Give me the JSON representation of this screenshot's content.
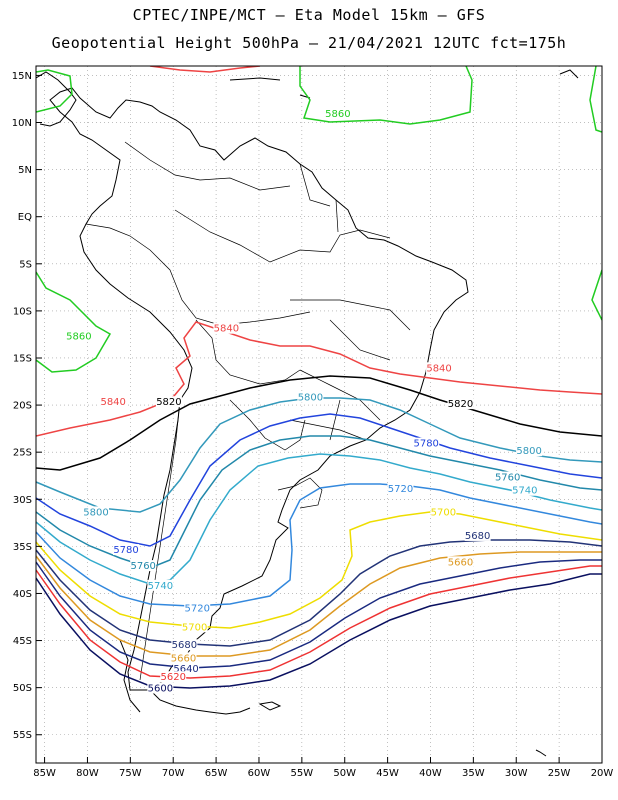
{
  "header": {
    "line1": "CPTEC/INPE/MCT –  Eta Model 15km – GFS",
    "line2": "Geopotential Height 500hPa – 21/04/2021 12UTC fct=175h"
  },
  "map": {
    "lon_range": [
      -86,
      -20
    ],
    "lat_range": [
      -58,
      16
    ],
    "lat_ticks": [
      {
        "value": 15,
        "label": "15N"
      },
      {
        "value": 10,
        "label": "10N"
      },
      {
        "value": 5,
        "label": "5N"
      },
      {
        "value": 0,
        "label": "EQ"
      },
      {
        "value": -5,
        "label": "5S"
      },
      {
        "value": -10,
        "label": "10S"
      },
      {
        "value": -15,
        "label": "15S"
      },
      {
        "value": -20,
        "label": "20S"
      },
      {
        "value": -25,
        "label": "25S"
      },
      {
        "value": -30,
        "label": "30S"
      },
      {
        "value": -35,
        "label": "35S"
      },
      {
        "value": -40,
        "label": "40S"
      },
      {
        "value": -45,
        "label": "45S"
      },
      {
        "value": -50,
        "label": "50S"
      },
      {
        "value": -55,
        "label": "55S"
      }
    ],
    "lon_ticks": [
      {
        "value": -85,
        "label": "85W"
      },
      {
        "value": -80,
        "label": "80W"
      },
      {
        "value": -75,
        "label": "75W"
      },
      {
        "value": -70,
        "label": "70W"
      },
      {
        "value": -65,
        "label": "65W"
      },
      {
        "value": -60,
        "label": "60W"
      },
      {
        "value": -55,
        "label": "55W"
      },
      {
        "value": -50,
        "label": "50W"
      },
      {
        "value": -45,
        "label": "45W"
      },
      {
        "value": -40,
        "label": "40W"
      },
      {
        "value": -35,
        "label": "35W"
      },
      {
        "value": -30,
        "label": "30W"
      },
      {
        "value": -25,
        "label": "25W"
      },
      {
        "value": -20,
        "label": "20W"
      }
    ],
    "grid": true,
    "colors": {
      "5860": "#22cc22",
      "5840": "#ee4444",
      "5820": "#000000",
      "5800": "#3399bb",
      "5780": "#2244dd",
      "5760": "#2288aa",
      "5740": "#33aacc",
      "5720": "#3388dd",
      "5700": "#eedd00",
      "5680": "#223377",
      "5660": "#dd9922",
      "5640": "#1a2a80",
      "5620": "#ee3333",
      "5600": "#0a1060"
    },
    "contour_labels": [
      {
        "text": "5860",
        "lon": -50.8,
        "lat": 10.8
      },
      {
        "text": "5860",
        "lon": -81.0,
        "lat": -12.8
      },
      {
        "text": "5840",
        "lon": -63.8,
        "lat": -12.0
      },
      {
        "text": "5840",
        "lon": -39.0,
        "lat": -16.2
      },
      {
        "text": "5840",
        "lon": -77.0,
        "lat": -19.8
      },
      {
        "text": "5820",
        "lon": -70.5,
        "lat": -19.8
      },
      {
        "text": "5820",
        "lon": -36.5,
        "lat": -20.0
      },
      {
        "text": "5800",
        "lon": -54.0,
        "lat": -19.3
      },
      {
        "text": "5800",
        "lon": -28.5,
        "lat": -25.0
      },
      {
        "text": "5800",
        "lon": -79.0,
        "lat": -31.5
      },
      {
        "text": "5780",
        "lon": -40.5,
        "lat": -24.2
      },
      {
        "text": "5780",
        "lon": -75.5,
        "lat": -35.5
      },
      {
        "text": "5760",
        "lon": -31.0,
        "lat": -27.8
      },
      {
        "text": "5760",
        "lon": -73.5,
        "lat": -37.2
      },
      {
        "text": "5740",
        "lon": -29.0,
        "lat": -29.2
      },
      {
        "text": "5740",
        "lon": -71.5,
        "lat": -39.3
      },
      {
        "text": "5720",
        "lon": -43.5,
        "lat": -29.0
      },
      {
        "text": "5720",
        "lon": -67.2,
        "lat": -41.7
      },
      {
        "text": "5700",
        "lon": -38.5,
        "lat": -31.5
      },
      {
        "text": "5700",
        "lon": -67.5,
        "lat": -43.7
      },
      {
        "text": "5680",
        "lon": -34.5,
        "lat": -34.0
      },
      {
        "text": "5680",
        "lon": -68.7,
        "lat": -45.6
      },
      {
        "text": "5660",
        "lon": -36.5,
        "lat": -36.8
      },
      {
        "text": "5660",
        "lon": -68.8,
        "lat": -47.0
      },
      {
        "text": "5640",
        "lon": -68.5,
        "lat": -48.1
      },
      {
        "text": "5620",
        "lon": -70.0,
        "lat": -49.0
      },
      {
        "text": "5600",
        "lon": -71.5,
        "lat": -50.2
      }
    ]
  }
}
